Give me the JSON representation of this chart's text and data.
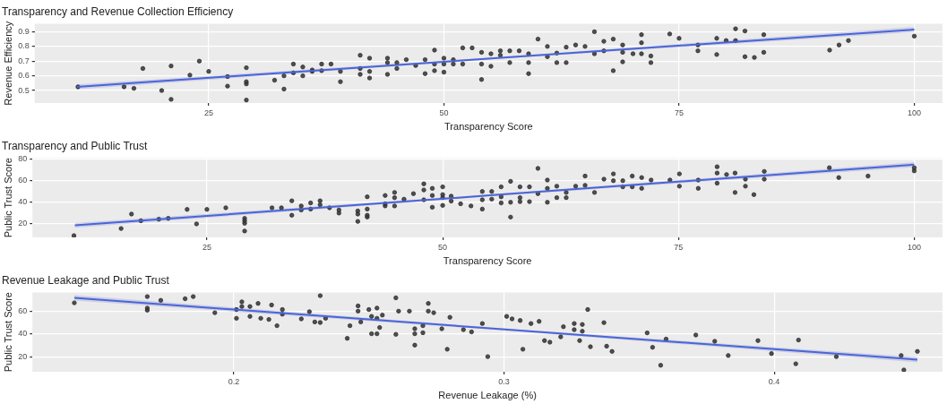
{
  "chart_data": [
    {
      "type": "scatter",
      "title": "Transparency and Revenue Collection Efficiency",
      "xlabel": "Transparency Score",
      "ylabel": "Revenue Efficiency",
      "xlim": [
        6.5,
        103
      ],
      "xticks": [
        25,
        50,
        75,
        100
      ],
      "ylim": [
        0.415,
        0.955
      ],
      "yticks": [
        0.5,
        0.6,
        0.7,
        0.8,
        0.9
      ],
      "grid": true,
      "marker": "circle",
      "series": [
        {
          "color": "#333333",
          "x": [
            11.1,
            16.0,
            17.05,
            18.0,
            20.0,
            21.0,
            21.0,
            23.0,
            24.0,
            25.0,
            27.0,
            27.0,
            29.0,
            29.0,
            29.0,
            29.0,
            32.0,
            33.0,
            33.0,
            34.0,
            34.0,
            35.0,
            35.0,
            36.0,
            36.0,
            37.0,
            37.0,
            38.0,
            39.0,
            39.0,
            41.1,
            41.1,
            41.1,
            42.1,
            42.1,
            42.1,
            44.0,
            44.0,
            44.0,
            45.0,
            45.0,
            46.0,
            47.0,
            48.0,
            48.0,
            49.0,
            49.0,
            49.0,
            50.0,
            50.0,
            50.0,
            51.0,
            51.0,
            52.0,
            52.0,
            53.0,
            54.0,
            54.0,
            54.0,
            55.0,
            55.0,
            56.0,
            56.0,
            57.0,
            57.0,
            58.0,
            59.0,
            59.0,
            59.0,
            60.0,
            61.0,
            61.0,
            62.0,
            62.0,
            63.0,
            63.0,
            64.0,
            65.0,
            66.0,
            66.0,
            67.0,
            67.0,
            68.0,
            68.0,
            69.0,
            69.0,
            69.0,
            70.1,
            71.0,
            71.0,
            71.0,
            72.0,
            72.0,
            74.0,
            75.0,
            77.0,
            77.0,
            79.0,
            79.0,
            80.0,
            81.0,
            81.0,
            82.0,
            82.0,
            83.0,
            84.0,
            84.0,
            91.0,
            92.0,
            93.0,
            100.0
          ],
          "values": [
            0.525,
            0.525,
            0.515,
            0.65,
            0.5,
            0.667,
            0.44,
            0.605,
            0.7,
            0.63,
            0.595,
            0.53,
            0.655,
            0.56,
            0.545,
            0.435,
            0.57,
            0.6,
            0.51,
            0.68,
            0.62,
            0.66,
            0.6,
            0.64,
            0.63,
            0.68,
            0.635,
            0.68,
            0.63,
            0.56,
            0.74,
            0.65,
            0.61,
            0.72,
            0.63,
            0.585,
            0.72,
            0.69,
            0.61,
            0.69,
            0.65,
            0.71,
            0.67,
            0.71,
            0.615,
            0.775,
            0.68,
            0.635,
            0.72,
            0.68,
            0.625,
            0.71,
            0.68,
            0.79,
            0.68,
            0.79,
            0.76,
            0.68,
            0.575,
            0.75,
            0.665,
            0.77,
            0.74,
            0.77,
            0.69,
            0.77,
            0.75,
            0.69,
            0.615,
            0.85,
            0.8,
            0.73,
            0.755,
            0.69,
            0.795,
            0.69,
            0.81,
            0.8,
            0.9,
            0.75,
            0.835,
            0.77,
            0.85,
            0.635,
            0.81,
            0.76,
            0.695,
            0.75,
            0.88,
            0.825,
            0.75,
            0.735,
            0.69,
            0.885,
            0.855,
            0.81,
            0.77,
            0.855,
            0.745,
            0.84,
            0.92,
            0.84,
            0.905,
            0.73,
            0.725,
            0.88,
            0.76,
            0.775,
            0.81,
            0.84,
            0.87
          ]
        },
        {
          "type": "line",
          "marker": "none",
          "color": "#4a66d6",
          "x": [
            11,
            55,
            100
          ],
          "values": [
            0.525,
            0.718,
            0.915
          ],
          "lower": [
            0.508,
            0.712,
            0.898
          ],
          "upper": [
            0.542,
            0.724,
            0.932
          ]
        }
      ]
    },
    {
      "type": "scatter",
      "title": "Transparency and Public Trust",
      "xlabel": "Transparency Score",
      "ylabel": "Public Trust Score",
      "xlim": [
        6.5,
        103
      ],
      "xticks": [
        25,
        50,
        75,
        100
      ],
      "ylim": [
        7.5,
        81
      ],
      "yticks": [
        20,
        40,
        60,
        80
      ],
      "grid": true,
      "marker": "circle",
      "series": [
        {
          "color": "#333333",
          "x": [
            10.9,
            15.9,
            17.0,
            18.0,
            19.9,
            20.9,
            22.9,
            23.9,
            25.0,
            27.0,
            29.0,
            29.0,
            29.0,
            29.0,
            31.9,
            32.9,
            34.0,
            34.0,
            35.0,
            35.0,
            36.0,
            36.0,
            37.0,
            37.0,
            38.0,
            39.0,
            39.0,
            41.0,
            41.0,
            41.0,
            42.0,
            42.0,
            42.0,
            42.0,
            43.9,
            43.9,
            43.9,
            44.9,
            44.9,
            44.9,
            45.9,
            46.9,
            48.0,
            48.0,
            48.0,
            48.9,
            48.9,
            48.9,
            50.0,
            50.0,
            50.0,
            50.0,
            50.9,
            50.9,
            51.9,
            53.0,
            54.2,
            54.2,
            54.2,
            55.2,
            55.2,
            56.2,
            56.2,
            56.2,
            57.2,
            57.2,
            57.2,
            58.2,
            58.2,
            58.2,
            59.2,
            59.2,
            60.1,
            60.1,
            61.1,
            61.1,
            61.1,
            62.1,
            62.1,
            63.1,
            63.1,
            64.1,
            65.1,
            65.1,
            66.1,
            67.1,
            68.1,
            68.1,
            69.1,
            69.1,
            70.1,
            70.1,
            71.1,
            71.1,
            72.1,
            74.1,
            75.1,
            75.1,
            77.1,
            77.1,
            79.1,
            79.1,
            79.1,
            80.1,
            81.0,
            81.0,
            82.1,
            82.1,
            83.0,
            84.1,
            84.1,
            91.0,
            92.0,
            95.1,
            100,
            100
          ],
          "values": [
            9.1,
            15.7,
            29.1,
            22.9,
            24.3,
            25.1,
            33.4,
            20,
            33.4,
            34.9,
            25.1,
            22.9,
            20.6,
            13.4,
            34.9,
            34.9,
            41.4,
            28,
            36.6,
            32.9,
            39.4,
            33.7,
            41.4,
            37.7,
            34.9,
            32.9,
            30,
            32,
            29.1,
            22.3,
            45.1,
            33.7,
            28,
            26.3,
            46.3,
            38.6,
            36.6,
            49.1,
            44.3,
            36.6,
            42.9,
            48,
            57.1,
            51.4,
            42.3,
            52.9,
            46.3,
            35.4,
            54.3,
            47.1,
            44.3,
            37.1,
            45.7,
            41.1,
            38.6,
            36.6,
            50,
            42.3,
            33.7,
            50,
            42.9,
            54.3,
            45.1,
            39.4,
            59.4,
            40,
            26.3,
            54.3,
            44.3,
            40.6,
            54.3,
            40.6,
            71.4,
            48,
            60.6,
            52.9,
            40,
            54.9,
            44.3,
            49.1,
            44.3,
            54.9,
            64.3,
            55.7,
            49.1,
            61.4,
            66.3,
            60,
            60,
            54.3,
            64.3,
            54.3,
            62.9,
            52.9,
            60.6,
            60.6,
            66.3,
            54.9,
            60.6,
            52.9,
            72.9,
            67.1,
            57.7,
            65.7,
            67.1,
            49.1,
            61.4,
            54.9,
            47.1,
            68.6,
            61.4,
            72,
            62.9,
            64.3,
            72,
            69.1
          ]
        },
        {
          "type": "line",
          "marker": "none",
          "color": "#4a66d6",
          "x": [
            11,
            55,
            100
          ],
          "values": [
            18.6,
            46.4,
            74.9
          ],
          "lower": [
            16.4,
            45.5,
            72.6
          ],
          "upper": [
            20.8,
            47.3,
            77.2
          ]
        }
      ]
    },
    {
      "type": "scatter",
      "title": "Revenue Leakage and Public Trust",
      "xlabel": "Revenue Leakage (%)",
      "ylabel": "Public Trust Score",
      "xlim": [
        0.1255,
        0.4623
      ],
      "xticks": [
        0.2,
        0.3,
        0.4
      ],
      "ylim": [
        6.7,
        76.5
      ],
      "yticks": [
        20,
        40,
        60
      ],
      "grid": true,
      "marker": "circle",
      "series": [
        {
          "color": "#333333",
          "x": [
            0.141,
            0.168,
            0.168,
            0.168,
            0.173,
            0.182,
            0.185,
            0.193,
            0.201,
            0.201,
            0.203,
            0.203,
            0.206,
            0.206,
            0.209,
            0.21,
            0.213,
            0.214,
            0.216,
            0.218,
            0.218,
            0.225,
            0.228,
            0.23,
            0.232,
            0.232,
            0.234,
            0.242,
            0.243,
            0.246,
            0.246,
            0.247,
            0.25,
            0.251,
            0.251,
            0.253,
            0.253,
            0.253,
            0.254,
            0.255,
            0.26,
            0.26,
            0.261,
            0.265,
            0.267,
            0.267,
            0.267,
            0.27,
            0.27,
            0.272,
            0.272,
            0.274,
            0.277,
            0.279,
            0.28,
            0.285,
            0.288,
            0.292,
            0.294,
            0.301,
            0.303,
            0.306,
            0.307,
            0.31,
            0.313,
            0.315,
            0.317,
            0.321,
            0.322,
            0.326,
            0.326,
            0.328,
            0.329,
            0.329,
            0.331,
            0.332,
            0.337,
            0.338,
            0.34,
            0.353,
            0.355,
            0.358,
            0.36,
            0.371,
            0.378,
            0.383,
            0.394,
            0.399,
            0.408,
            0.409,
            0.423,
            0.447,
            0.448,
            0.453
          ],
          "values": [
            67.3,
            72.8,
            62.7,
            60.8,
            69.5,
            70.9,
            72.8,
            58.6,
            53.7,
            61.4,
            68.2,
            64.1,
            55.4,
            64.1,
            66.8,
            53.7,
            52.7,
            65.4,
            47.2,
            61.4,
            57.3,
            53.2,
            59.5,
            50.5,
            73.6,
            50,
            53.7,
            36.1,
            47.2,
            64.6,
            60,
            50.5,
            61.4,
            40.1,
            55.4,
            62.7,
            53.7,
            40.1,
            45.6,
            56.5,
            71.7,
            39.6,
            60,
            60,
            30.1,
            40.1,
            44.5,
            47.2,
            41,
            66.8,
            60,
            58.6,
            44.5,
            26.5,
            54.6,
            43.7,
            41.8,
            49.1,
            20,
            55.4,
            53.2,
            51.8,
            26.5,
            49.1,
            51,
            34.1,
            32.7,
            37.4,
            46.3,
            43.7,
            49.1,
            34.1,
            48.3,
            42.3,
            61.4,
            28.7,
            49.9,
            29.2,
            24.6,
            40.9,
            28.2,
            12.4,
            35.4,
            39,
            33.5,
            21,
            34.1,
            22.7,
            13.7,
            34.6,
            20,
            21,
            8.3,
            24.6
          ]
        },
        {
          "type": "line",
          "marker": "none",
          "color": "#4a66d6",
          "x": [
            0.141,
            0.297,
            0.453
          ],
          "values": [
            71.7,
            44.5,
            17.3
          ],
          "lower": [
            69.3,
            43.6,
            15.0
          ],
          "upper": [
            74.1,
            45.4,
            19.6
          ]
        }
      ]
    }
  ]
}
